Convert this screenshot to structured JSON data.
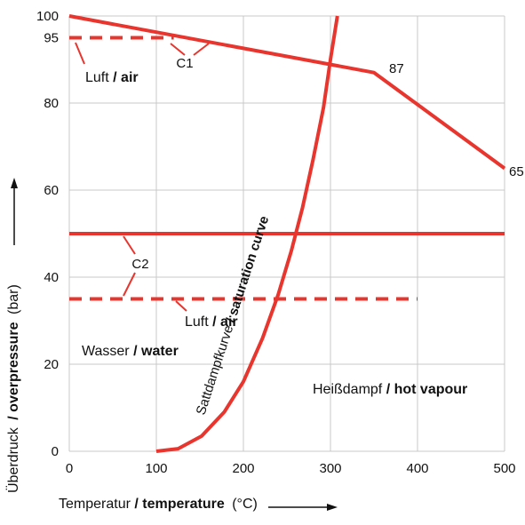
{
  "chart_data": {
    "type": "line",
    "xlabel": {
      "de": "Temperatur",
      "sep": "/",
      "en": "temperature",
      "unit": "(°C)"
    },
    "ylabel": {
      "de": "Überdruck",
      "sep": "/",
      "en": "overpressure",
      "unit": "(bar)"
    },
    "xlim": [
      0,
      500
    ],
    "ylim": [
      0,
      100
    ],
    "x_ticks": [
      0,
      100,
      200,
      300,
      400,
      500
    ],
    "y_ticks": [
      0,
      20,
      40,
      60,
      80,
      95,
      100
    ],
    "grid": true,
    "colors": {
      "series": "#e8352e",
      "grid": "#c8c8c8",
      "text": "#111111"
    },
    "series": [
      {
        "name": "C1",
        "style": "solid",
        "x": [
          0,
          350,
          500
        ],
        "y": [
          100,
          87,
          65
        ]
      },
      {
        "name": "C1 Luft / air",
        "style": "dashed",
        "x": [
          0,
          120
        ],
        "y": [
          95,
          95
        ]
      },
      {
        "name": "C2",
        "style": "solid",
        "x": [
          0,
          500
        ],
        "y": [
          50,
          50
        ]
      },
      {
        "name": "C2 Luft / air",
        "style": "dashed",
        "x": [
          0,
          400
        ],
        "y": [
          35,
          35
        ]
      },
      {
        "name": "Sattdampfkurve / saturation curve",
        "style": "solid",
        "x": [
          100,
          125,
          152,
          178,
          200,
          222,
          240,
          255,
          268,
          280,
          292,
          300,
          308
        ],
        "y": [
          0,
          0.6,
          3.5,
          9,
          16,
          26,
          36,
          46,
          56,
          67,
          79,
          90,
          100
        ]
      }
    ],
    "labels": {
      "c1": "C1",
      "c2": "C2",
      "v87": "87",
      "v65": "65",
      "luft_top": {
        "de": "Luft",
        "sep": "/",
        "en": "air"
      },
      "luft_mid": {
        "de": "Luft",
        "sep": "/",
        "en": "air"
      },
      "water": {
        "de": "Wasser",
        "sep": "/",
        "en": "water"
      },
      "vapour": {
        "de": "Heißdampf",
        "sep": "/",
        "en": "hot vapour"
      },
      "saturation": {
        "de": "Sattdampfkurve",
        "sep": "/",
        "en": "saturation curve"
      }
    }
  }
}
